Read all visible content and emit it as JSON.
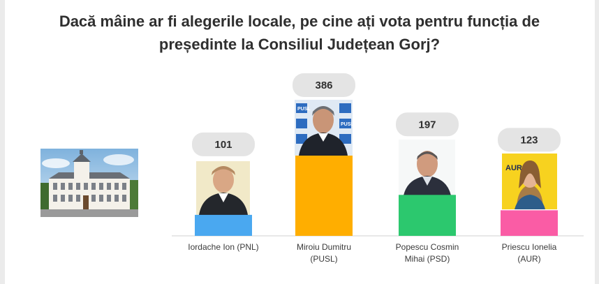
{
  "title": {
    "line1": "Dacă mâine ar fi alegerile locale, pe cine ați vota pentru funcția de",
    "line2": "președinte la Consiliul Județean Gorj?"
  },
  "image_label": "PUSL",
  "chart_data": {
    "type": "bar",
    "categories": [
      [
        "Iordache Ion (PNL)"
      ],
      [
        "Miroiu Dumitru",
        "(PUSL)"
      ],
      [
        "Popescu Cosmin",
        "Mihai (PSD)"
      ],
      [
        "Priescu Ionelia",
        "(AUR)"
      ]
    ],
    "values": [
      101,
      386,
      197,
      123
    ],
    "colors": [
      "#4aa8f0",
      "#ffae00",
      "#2cc86e",
      "#fa5ca5"
    ],
    "ylim": [
      0,
      386
    ]
  }
}
